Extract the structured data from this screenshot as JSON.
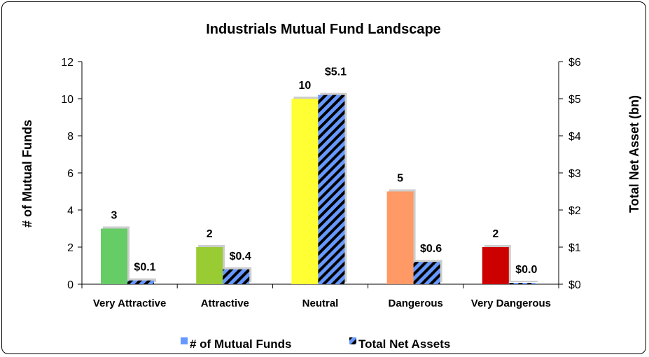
{
  "chart_data": {
    "type": "bar",
    "title": "Industrials Mutual Fund Landscape",
    "categories": [
      "Very Attractive",
      "Attractive",
      "Neutral",
      "Dangerous",
      "Very Dangerous"
    ],
    "series": [
      {
        "name": "# of Mutual Funds",
        "axis": "left",
        "values": [
          3,
          2,
          10,
          5,
          2
        ],
        "labels": [
          "3",
          "2",
          "10",
          "5",
          "2"
        ],
        "colors": [
          "#66cc66",
          "#99cc33",
          "#ffff33",
          "#ff9966",
          "#cc0000"
        ]
      },
      {
        "name": "Total Net Assets",
        "axis": "right",
        "values": [
          0.1,
          0.4,
          5.1,
          0.6,
          0.02
        ],
        "labels": [
          "$0.1",
          "$0.4",
          "$5.1",
          "$0.6",
          "$0.0"
        ],
        "color": "#6699ff",
        "pattern": "black diagonal stripes"
      }
    ],
    "ylabel_left": "# of Mutual Funds",
    "ylabel_right": "Total Net Asset (bn)",
    "ylim_left": [
      0,
      12
    ],
    "ylim_right": [
      0,
      6
    ],
    "yticks_left": [
      "0",
      "2",
      "4",
      "6",
      "8",
      "10",
      "12"
    ],
    "yticks_right": [
      "$0",
      "$1",
      "$2",
      "$3",
      "$4",
      "$5",
      "$6"
    ],
    "grid": false,
    "legend": "bottom"
  }
}
